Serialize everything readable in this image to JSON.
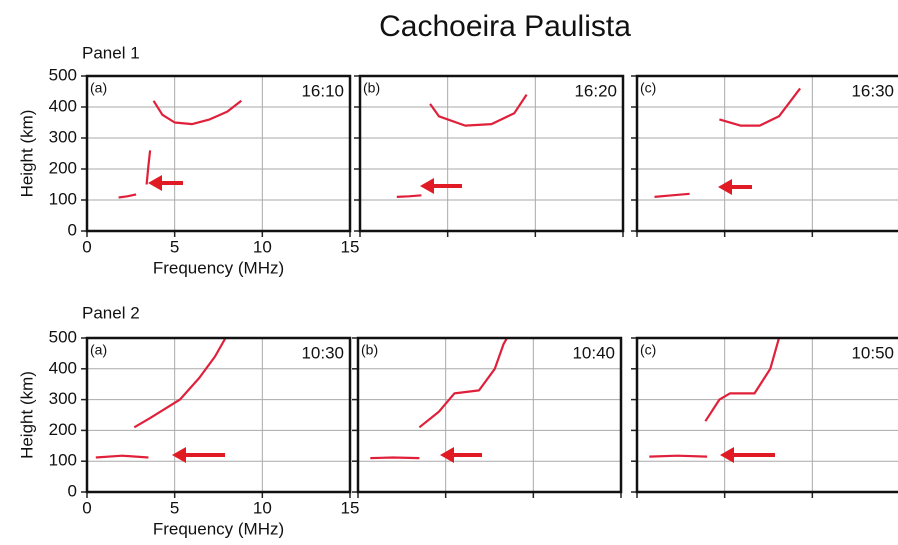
{
  "title": "Cachoeira Paulista",
  "panel_labels": [
    "Panel 1",
    "Panel 2"
  ],
  "chart_data": [
    {
      "type": "line",
      "label": "(a)",
      "time": "16:10",
      "xlabel": "Frequency (MHz)",
      "ylabel": "Height (km)",
      "tick_labels": true,
      "xlim": [
        0,
        15
      ],
      "ylim": [
        0,
        500
      ],
      "xticks": [
        0,
        5,
        10,
        15
      ],
      "yticks": [
        0,
        100,
        200,
        300,
        400,
        500
      ],
      "grid": true,
      "series": [
        {
          "color": "#e0203a",
          "x": [
            1.8,
            2.3,
            2.8
          ],
          "values": [
            108,
            112,
            118
          ]
        },
        {
          "color": "#e0203a",
          "x": [
            3.4,
            3.5,
            3.6
          ],
          "values": [
            150,
            210,
            260
          ]
        },
        {
          "color": "#e0203a",
          "x": [
            3.8,
            4.3,
            5,
            6,
            7,
            8,
            8.8
          ],
          "values": [
            420,
            375,
            350,
            345,
            360,
            385,
            420
          ]
        }
      ]
    },
    {
      "type": "line",
      "label": "(b)",
      "time": "16:20",
      "tick_labels": false,
      "xlim": [
        0,
        15
      ],
      "ylim": [
        0,
        500
      ],
      "xticks": [
        0,
        5,
        10,
        15
      ],
      "yticks": [
        0,
        100,
        200,
        300,
        400,
        500
      ],
      "grid": true,
      "series": [
        {
          "color": "#e0203a",
          "x": [
            2.1,
            2.8,
            3.5
          ],
          "values": [
            110,
            112,
            115
          ]
        },
        {
          "color": "#e0203a",
          "x": [
            4,
            4.5,
            6,
            7.5,
            8.8,
            9.5
          ],
          "values": [
            410,
            370,
            340,
            345,
            380,
            440
          ]
        }
      ]
    },
    {
      "type": "line",
      "label": "(c)",
      "time": "16:30",
      "tick_labels": false,
      "xlim": [
        0,
        15
      ],
      "ylim": [
        0,
        500
      ],
      "xticks": [
        0,
        5,
        10,
        15
      ],
      "yticks": [
        0,
        100,
        200,
        300,
        400,
        500
      ],
      "grid": true,
      "series": [
        {
          "color": "#e0203a",
          "x": [
            1,
            2,
            3
          ],
          "values": [
            110,
            115,
            120
          ]
        },
        {
          "color": "#e0203a",
          "x": [
            4.7,
            5.9,
            7,
            8.1,
            9.3
          ],
          "values": [
            360,
            340,
            340,
            370,
            460
          ]
        }
      ]
    },
    {
      "type": "line",
      "label": "(a)",
      "time": "10:30",
      "xlabel": "Frequency (MHz)",
      "ylabel": "Height (km)",
      "tick_labels": true,
      "xlim": [
        0,
        15
      ],
      "ylim": [
        0,
        500
      ],
      "xticks": [
        0,
        5,
        10,
        15
      ],
      "yticks": [
        0,
        100,
        200,
        300,
        400,
        500
      ],
      "grid": true,
      "series": [
        {
          "color": "#e0203a",
          "x": [
            0.5,
            2,
            3.5
          ],
          "values": [
            112,
            118,
            112
          ]
        },
        {
          "color": "#e0203a",
          "x": [
            2.7,
            3.6,
            5.3,
            6.4,
            7.3,
            7.9
          ],
          "values": [
            210,
            240,
            300,
            370,
            440,
            500
          ]
        }
      ]
    },
    {
      "type": "line",
      "label": "(b)",
      "time": "10:40",
      "tick_labels": false,
      "xlim": [
        0,
        15
      ],
      "ylim": [
        0,
        500
      ],
      "xticks": [
        0,
        5,
        10,
        15
      ],
      "yticks": [
        0,
        100,
        200,
        300,
        400,
        500
      ],
      "grid": true,
      "series": [
        {
          "color": "#e0203a",
          "x": [
            0.7,
            2,
            3.5
          ],
          "values": [
            110,
            112,
            110
          ]
        },
        {
          "color": "#e0203a",
          "x": [
            3.5,
            4.6,
            5.5,
            6.9,
            7.8,
            8.3,
            8.5
          ],
          "values": [
            210,
            260,
            320,
            330,
            400,
            480,
            500
          ]
        }
      ]
    },
    {
      "type": "line",
      "label": "(c)",
      "time": "10:50",
      "tick_labels": false,
      "xlim": [
        0,
        15
      ],
      "ylim": [
        0,
        500
      ],
      "xticks": [
        0,
        5,
        10,
        15
      ],
      "yticks": [
        0,
        100,
        200,
        300,
        400,
        500
      ],
      "grid": true,
      "series": [
        {
          "color": "#e0203a",
          "x": [
            0.7,
            2.3,
            4
          ],
          "values": [
            115,
            118,
            115
          ]
        },
        {
          "color": "#e0203a",
          "x": [
            3.9,
            4.7,
            5.3,
            6.7,
            7.6,
            8.1
          ],
          "values": [
            230,
            300,
            320,
            320,
            400,
            500
          ]
        }
      ]
    }
  ]
}
